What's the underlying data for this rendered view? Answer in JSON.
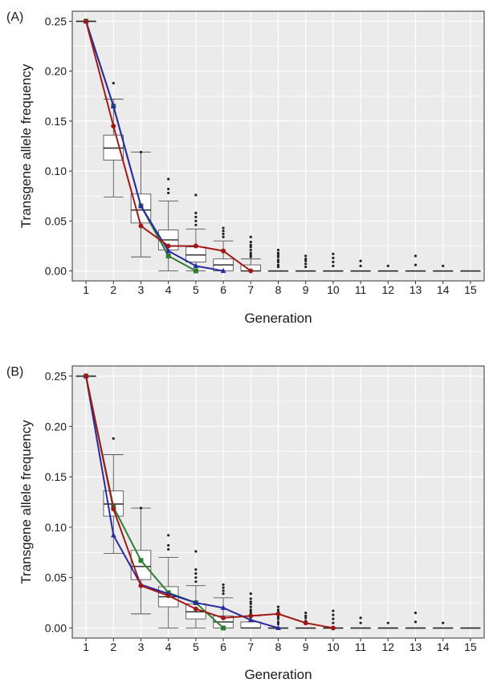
{
  "colors": {
    "panel_bg": "#ebebeb",
    "grid": "#ffffff",
    "green": "#2e7d32",
    "blue": "#2a2aa0",
    "red": "#a01818",
    "box_stroke": "#555555",
    "outlier": "#222222"
  },
  "chart_data": [
    {
      "type": "box",
      "panel_label": "(A)",
      "xlabel": "Generation",
      "ylabel": "Transgene allele frequency",
      "categories": [
        "1",
        "2",
        "3",
        "4",
        "5",
        "6",
        "7",
        "8",
        "9",
        "10",
        "11",
        "12",
        "13",
        "14",
        "15"
      ],
      "yticks": [
        "0.00",
        "0.05",
        "0.10",
        "0.15",
        "0.20",
        "0.25"
      ],
      "ylim": [
        -0.01,
        0.26
      ],
      "grid": true,
      "boxes": [
        {
          "gen": 1,
          "q1": 0.25,
          "med": 0.25,
          "q3": 0.25,
          "lo": 0.25,
          "hi": 0.25,
          "outliers": []
        },
        {
          "gen": 2,
          "q1": 0.111,
          "med": 0.123,
          "q3": 0.136,
          "lo": 0.074,
          "hi": 0.172,
          "outliers": [
            0.188
          ]
        },
        {
          "gen": 3,
          "q1": 0.048,
          "med": 0.061,
          "q3": 0.077,
          "lo": 0.014,
          "hi": 0.119,
          "outliers": [
            0.119
          ]
        },
        {
          "gen": 4,
          "q1": 0.021,
          "med": 0.031,
          "q3": 0.041,
          "lo": 0.0,
          "hi": 0.07,
          "outliers": [
            0.078,
            0.082,
            0.092
          ]
        },
        {
          "gen": 5,
          "q1": 0.009,
          "med": 0.016,
          "q3": 0.024,
          "lo": 0.0,
          "hi": 0.042,
          "outliers": [
            0.046,
            0.05,
            0.054,
            0.058,
            0.076
          ]
        },
        {
          "gen": 6,
          "q1": 0.0,
          "med": 0.006,
          "q3": 0.012,
          "lo": 0.0,
          "hi": 0.03,
          "outliers": [
            0.034,
            0.037,
            0.04,
            0.043
          ]
        },
        {
          "gen": 7,
          "q1": 0.0,
          "med": 0.0,
          "q3": 0.006,
          "lo": 0.0,
          "hi": 0.012,
          "outliers": [
            0.014,
            0.016,
            0.018,
            0.021,
            0.024,
            0.026,
            0.029,
            0.034
          ]
        },
        {
          "gen": 8,
          "q1": 0.0,
          "med": 0.0,
          "q3": 0.0,
          "lo": 0.0,
          "hi": 0.0,
          "outliers": [
            0.004,
            0.006,
            0.009,
            0.011,
            0.014,
            0.016,
            0.018,
            0.021
          ]
        },
        {
          "gen": 9,
          "q1": 0.0,
          "med": 0.0,
          "q3": 0.0,
          "lo": 0.0,
          "hi": 0.0,
          "outliers": [
            0.004,
            0.007,
            0.01,
            0.012,
            0.015
          ]
        },
        {
          "gen": 10,
          "q1": 0.0,
          "med": 0.0,
          "q3": 0.0,
          "lo": 0.0,
          "hi": 0.0,
          "outliers": [
            0.005,
            0.009,
            0.013,
            0.017
          ]
        },
        {
          "gen": 11,
          "q1": 0.0,
          "med": 0.0,
          "q3": 0.0,
          "lo": 0.0,
          "hi": 0.0,
          "outliers": [
            0.005,
            0.01
          ]
        },
        {
          "gen": 12,
          "q1": 0.0,
          "med": 0.0,
          "q3": 0.0,
          "lo": 0.0,
          "hi": 0.0,
          "outliers": [
            0.005
          ]
        },
        {
          "gen": 13,
          "q1": 0.0,
          "med": 0.0,
          "q3": 0.0,
          "lo": 0.0,
          "hi": 0.0,
          "outliers": [
            0.006,
            0.015
          ]
        },
        {
          "gen": 14,
          "q1": 0.0,
          "med": 0.0,
          "q3": 0.0,
          "lo": 0.0,
          "hi": 0.0,
          "outliers": [
            0.005
          ]
        },
        {
          "gen": 15,
          "q1": 0.0,
          "med": 0.0,
          "q3": 0.0,
          "lo": 0.0,
          "hi": 0.0,
          "outliers": []
        }
      ],
      "series": [
        {
          "color_key": "green",
          "marker": "square",
          "x": [
            1,
            2,
            3,
            4,
            5
          ],
          "y": [
            0.25,
            0.165,
            0.065,
            0.015,
            0.0
          ]
        },
        {
          "color_key": "blue",
          "marker": "triangle",
          "x": [
            1,
            2,
            3,
            4,
            5,
            6
          ],
          "y": [
            0.25,
            0.165,
            0.065,
            0.02,
            0.005,
            0.0
          ]
        },
        {
          "color_key": "red",
          "marker": "circle",
          "x": [
            1,
            2,
            3,
            4,
            5,
            6,
            7
          ],
          "y": [
            0.25,
            0.145,
            0.045,
            0.025,
            0.025,
            0.02,
            0.0
          ]
        }
      ]
    },
    {
      "type": "box",
      "panel_label": "(B)",
      "xlabel": "Generation",
      "ylabel": "Transgene allele frequency",
      "categories": [
        "1",
        "2",
        "3",
        "4",
        "5",
        "6",
        "7",
        "8",
        "9",
        "10",
        "11",
        "12",
        "13",
        "14",
        "15"
      ],
      "yticks": [
        "0.00",
        "0.05",
        "0.10",
        "0.15",
        "0.20",
        "0.25"
      ],
      "ylim": [
        -0.01,
        0.26
      ],
      "grid": true,
      "boxes": [
        {
          "gen": 1,
          "q1": 0.25,
          "med": 0.25,
          "q3": 0.25,
          "lo": 0.25,
          "hi": 0.25,
          "outliers": []
        },
        {
          "gen": 2,
          "q1": 0.111,
          "med": 0.123,
          "q3": 0.136,
          "lo": 0.074,
          "hi": 0.172,
          "outliers": [
            0.188
          ]
        },
        {
          "gen": 3,
          "q1": 0.048,
          "med": 0.061,
          "q3": 0.077,
          "lo": 0.014,
          "hi": 0.119,
          "outliers": [
            0.119
          ]
        },
        {
          "gen": 4,
          "q1": 0.021,
          "med": 0.031,
          "q3": 0.041,
          "lo": 0.0,
          "hi": 0.07,
          "outliers": [
            0.078,
            0.082,
            0.092
          ]
        },
        {
          "gen": 5,
          "q1": 0.009,
          "med": 0.016,
          "q3": 0.024,
          "lo": 0.0,
          "hi": 0.042,
          "outliers": [
            0.046,
            0.05,
            0.054,
            0.058,
            0.076
          ]
        },
        {
          "gen": 6,
          "q1": 0.0,
          "med": 0.006,
          "q3": 0.012,
          "lo": 0.0,
          "hi": 0.03,
          "outliers": [
            0.034,
            0.037,
            0.04,
            0.043
          ]
        },
        {
          "gen": 7,
          "q1": 0.0,
          "med": 0.0,
          "q3": 0.006,
          "lo": 0.0,
          "hi": 0.012,
          "outliers": [
            0.014,
            0.016,
            0.018,
            0.021,
            0.024,
            0.026,
            0.029,
            0.034
          ]
        },
        {
          "gen": 8,
          "q1": 0.0,
          "med": 0.0,
          "q3": 0.0,
          "lo": 0.0,
          "hi": 0.0,
          "outliers": [
            0.004,
            0.006,
            0.009,
            0.011,
            0.014,
            0.016,
            0.018,
            0.021
          ]
        },
        {
          "gen": 9,
          "q1": 0.0,
          "med": 0.0,
          "q3": 0.0,
          "lo": 0.0,
          "hi": 0.0,
          "outliers": [
            0.004,
            0.007,
            0.01,
            0.012,
            0.015
          ]
        },
        {
          "gen": 10,
          "q1": 0.0,
          "med": 0.0,
          "q3": 0.0,
          "lo": 0.0,
          "hi": 0.0,
          "outliers": [
            0.005,
            0.009,
            0.013,
            0.017
          ]
        },
        {
          "gen": 11,
          "q1": 0.0,
          "med": 0.0,
          "q3": 0.0,
          "lo": 0.0,
          "hi": 0.0,
          "outliers": [
            0.005,
            0.01
          ]
        },
        {
          "gen": 12,
          "q1": 0.0,
          "med": 0.0,
          "q3": 0.0,
          "lo": 0.0,
          "hi": 0.0,
          "outliers": [
            0.005
          ]
        },
        {
          "gen": 13,
          "q1": 0.0,
          "med": 0.0,
          "q3": 0.0,
          "lo": 0.0,
          "hi": 0.0,
          "outliers": [
            0.006,
            0.015
          ]
        },
        {
          "gen": 14,
          "q1": 0.0,
          "med": 0.0,
          "q3": 0.0,
          "lo": 0.0,
          "hi": 0.0,
          "outliers": [
            0.005
          ]
        },
        {
          "gen": 15,
          "q1": 0.0,
          "med": 0.0,
          "q3": 0.0,
          "lo": 0.0,
          "hi": 0.0,
          "outliers": []
        }
      ],
      "series": [
        {
          "color_key": "green",
          "marker": "square",
          "x": [
            1,
            2,
            3,
            4,
            5,
            6
          ],
          "y": [
            0.25,
            0.12,
            0.067,
            0.035,
            0.025,
            0.0
          ]
        },
        {
          "color_key": "blue",
          "marker": "triangle",
          "x": [
            1,
            2,
            3,
            4,
            5,
            6,
            7,
            8
          ],
          "y": [
            0.25,
            0.092,
            0.043,
            0.034,
            0.025,
            0.02,
            0.008,
            0.0
          ]
        },
        {
          "color_key": "red",
          "marker": "circle",
          "x": [
            1,
            2,
            3,
            4,
            5,
            6,
            7,
            8,
            9,
            10
          ],
          "y": [
            0.25,
            0.118,
            0.042,
            0.032,
            0.019,
            0.01,
            0.012,
            0.014,
            0.005,
            0.0
          ]
        }
      ]
    }
  ]
}
